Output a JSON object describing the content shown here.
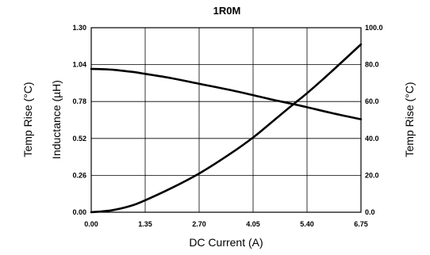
{
  "chart_data": {
    "type": "line",
    "title": "1R0M",
    "xlabel": "DC Current (A)",
    "ylabel": "Inductance (µH)",
    "ylabel_outer_left": "Temp Rise (°C)",
    "y2label": "Temp Rise (°C)",
    "xlim": [
      0,
      6.75
    ],
    "ylim": [
      0,
      1.3
    ],
    "y2lim": [
      0,
      100
    ],
    "x_ticks": [
      "0.00",
      "1.35",
      "2.70",
      "4.05",
      "5.40",
      "6.75"
    ],
    "y_ticks": [
      "0.00",
      "0.26",
      "0.52",
      "0.78",
      "1.04",
      "1.30"
    ],
    "y2_ticks": [
      "0.0",
      "20.0",
      "40.0",
      "60.0",
      "80.0",
      "100.0"
    ],
    "grid": true,
    "series": [
      {
        "axis": "left",
        "x": [
          0,
          0.5,
          1.0,
          1.35,
          2.0,
          2.7,
          3.5,
          4.05,
          4.5,
          5.0,
          5.4,
          6.0,
          6.75
        ],
        "y": [
          1.01,
          1.005,
          0.99,
          0.975,
          0.945,
          0.905,
          0.86,
          0.825,
          0.795,
          0.765,
          0.74,
          0.7,
          0.655
        ]
      },
      {
        "axis": "right",
        "x": [
          0,
          0.5,
          1.0,
          1.35,
          2.0,
          2.7,
          3.5,
          4.05,
          4.5,
          5.0,
          5.4,
          6.0,
          6.75
        ],
        "y": [
          0,
          1.0,
          3.5,
          6.5,
          13.0,
          21.0,
          32.0,
          40.5,
          48.5,
          57.5,
          64.5,
          76.0,
          91.0
        ]
      }
    ]
  }
}
